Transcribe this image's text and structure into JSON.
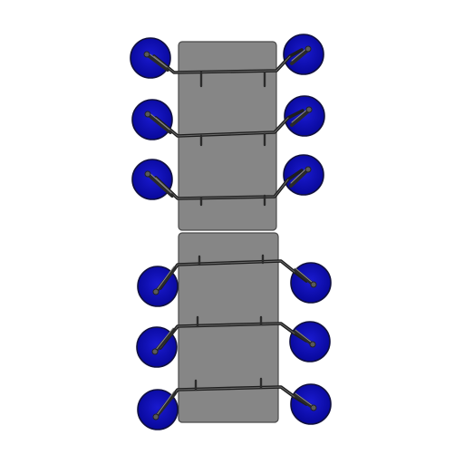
{
  "scene": {
    "description_free": true,
    "panels": 2,
    "cup_rows_per_panel": 3,
    "colors": {
      "background": "#ffffff",
      "panel": "#868686",
      "cup": "#0a0ab4",
      "rail": "#1e1e1e"
    },
    "icons": [
      "suction-cup-icon",
      "vacuum-panel-icon"
    ]
  }
}
